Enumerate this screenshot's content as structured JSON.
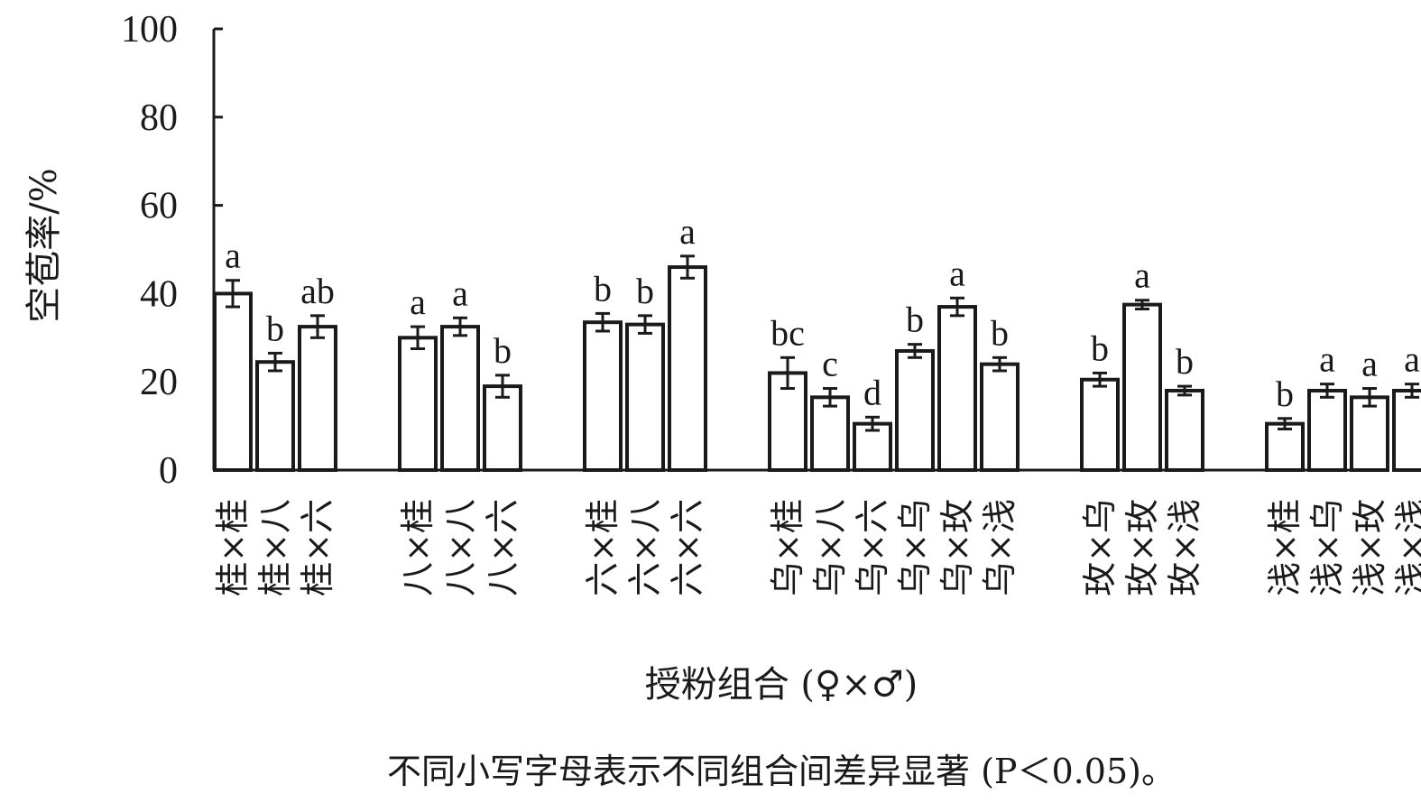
{
  "chart_data": {
    "type": "bar",
    "ylabel": "空苞率/%",
    "xlabel": "授粉组合 (♀×♂)",
    "note": "不同小写字母表示不同组合间差异显著 (P＜0.05)。",
    "ylim": [
      0,
      100
    ],
    "yticks": [
      "0",
      "20",
      "40",
      "60",
      "80",
      "100"
    ],
    "grid": false,
    "groups": [
      {
        "bars": [
          {
            "category": "桂×桂",
            "value": 40,
            "error": 3,
            "sig": "a"
          },
          {
            "category": "桂×八",
            "value": 24.5,
            "error": 2,
            "sig": "b"
          },
          {
            "category": "桂×六",
            "value": 32.5,
            "error": 2.5,
            "sig": "ab"
          }
        ]
      },
      {
        "bars": [
          {
            "category": "八×桂",
            "value": 30,
            "error": 2.5,
            "sig": "a"
          },
          {
            "category": "八×八",
            "value": 32.5,
            "error": 2,
            "sig": "a"
          },
          {
            "category": "八×六",
            "value": 19,
            "error": 2.5,
            "sig": "b"
          }
        ]
      },
      {
        "bars": [
          {
            "category": "六×桂",
            "value": 33.5,
            "error": 2,
            "sig": "b"
          },
          {
            "category": "六×八",
            "value": 33,
            "error": 2,
            "sig": "b"
          },
          {
            "category": "六×六",
            "value": 46,
            "error": 2.5,
            "sig": "a"
          }
        ]
      },
      {
        "bars": [
          {
            "category": "乌×桂",
            "value": 22,
            "error": 3.5,
            "sig": "bc"
          },
          {
            "category": "乌×八",
            "value": 16.5,
            "error": 2,
            "sig": "c"
          },
          {
            "category": "乌×六",
            "value": 10.5,
            "error": 1.5,
            "sig": "d"
          },
          {
            "category": "乌×乌",
            "value": 27,
            "error": 1.5,
            "sig": "b"
          },
          {
            "category": "乌×玫",
            "value": 37,
            "error": 2,
            "sig": "a"
          },
          {
            "category": "乌×浅",
            "value": 24,
            "error": 1.5,
            "sig": "b"
          }
        ]
      },
      {
        "bars": [
          {
            "category": "玫×乌",
            "value": 20.5,
            "error": 1.5,
            "sig": "b"
          },
          {
            "category": "玫×玫",
            "value": 37.5,
            "error": 1,
            "sig": "a"
          },
          {
            "category": "玫×浅",
            "value": 18,
            "error": 1,
            "sig": "b"
          }
        ]
      },
      {
        "bars": [
          {
            "category": "浅×桂",
            "value": 10.5,
            "error": 1.2,
            "sig": "b"
          },
          {
            "category": "浅×乌",
            "value": 18,
            "error": 1.5,
            "sig": "a"
          },
          {
            "category": "浅×玫",
            "value": 16.5,
            "error": 2,
            "sig": "a"
          },
          {
            "category": "浅×浅",
            "value": 18,
            "error": 1.5,
            "sig": "a"
          }
        ]
      }
    ]
  }
}
